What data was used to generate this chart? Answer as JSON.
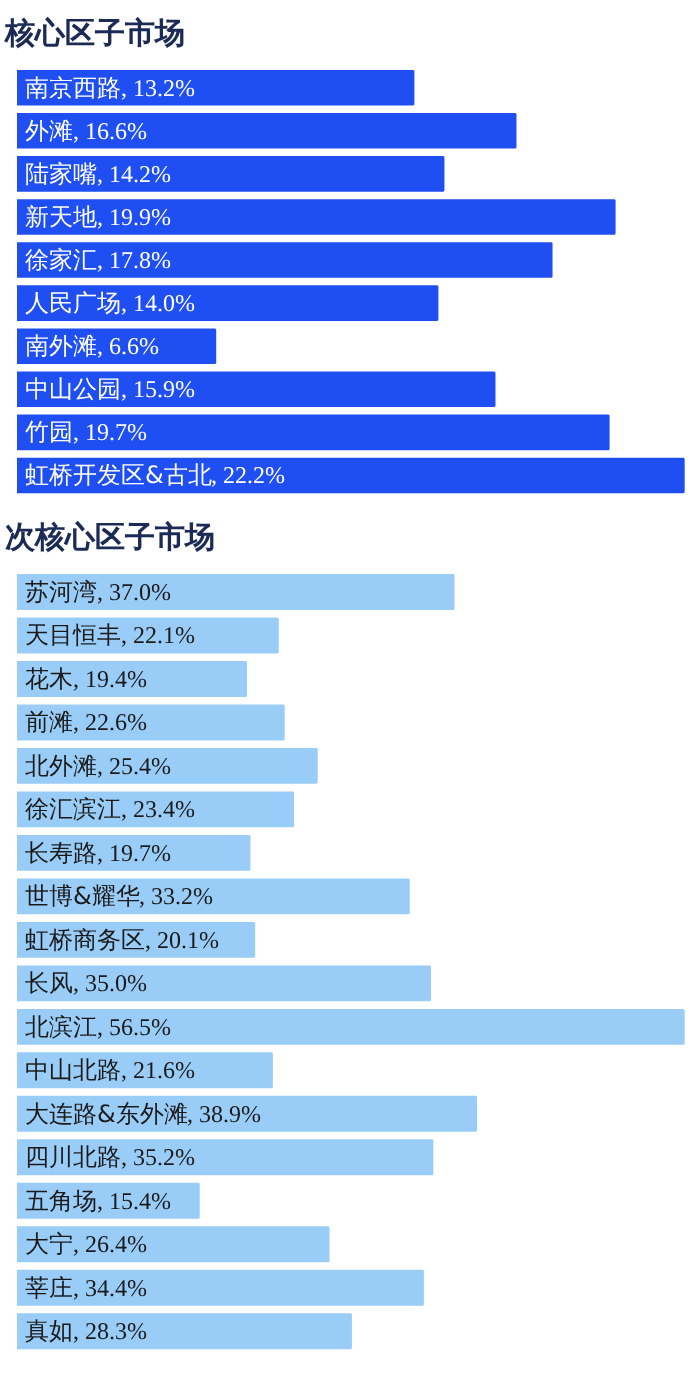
{
  "chart_data": [
    {
      "type": "bar",
      "orientation": "horizontal",
      "title": "核心区子市场",
      "color": "#1f4ff2",
      "categories": [
        "南京西路",
        "外滩",
        "陆家嘴",
        "新天地",
        "徐家汇",
        "人民广场",
        "南外滩",
        "中山公园",
        "竹园",
        "虹桥开发区&古北"
      ],
      "values": [
        13.2,
        16.6,
        14.2,
        19.9,
        17.8,
        14.0,
        6.6,
        15.9,
        19.7,
        22.2
      ],
      "value_labels": [
        ", 13.2%",
        ", 16.6%",
        ", 14.2%",
        ", 19.9%",
        ", 17.8%",
        ", 14.0%",
        ", 6.6%",
        ", 15.9%",
        ", 19.7%",
        ", 22.2%"
      ]
    },
    {
      "type": "bar",
      "orientation": "horizontal",
      "title": "次核心区子市场",
      "color": "#99cdf8",
      "categories": [
        "苏河湾",
        "天目恒丰",
        "花木",
        "前滩",
        "北外滩",
        "徐汇滨江",
        "长寿路",
        "世博&耀华",
        "虹桥商务区",
        "长风",
        "北滨江",
        "中山北路",
        "大连路&东外滩",
        "四川北路",
        "五角场",
        "大宁",
        "莘庄",
        "真如"
      ],
      "values": [
        37.0,
        22.1,
        19.4,
        22.6,
        25.4,
        23.4,
        19.7,
        33.2,
        20.1,
        35.0,
        56.5,
        21.6,
        38.9,
        35.2,
        15.4,
        26.4,
        34.4,
        28.3
      ],
      "value_labels": [
        ", 37.0%",
        ", 22.1%",
        ", 19.4%",
        ", 22.6%",
        ", 25.4%",
        ", 23.4%",
        ", 19.7%",
        ", 33.2%",
        ", 20.1%",
        ", 35.0%",
        ", 56.5%",
        ", 21.6%",
        ", 38.9%",
        ", 35.2%",
        ", 15.4%",
        ", 26.4%",
        ", 34.4%",
        ", 28.3%"
      ]
    }
  ]
}
